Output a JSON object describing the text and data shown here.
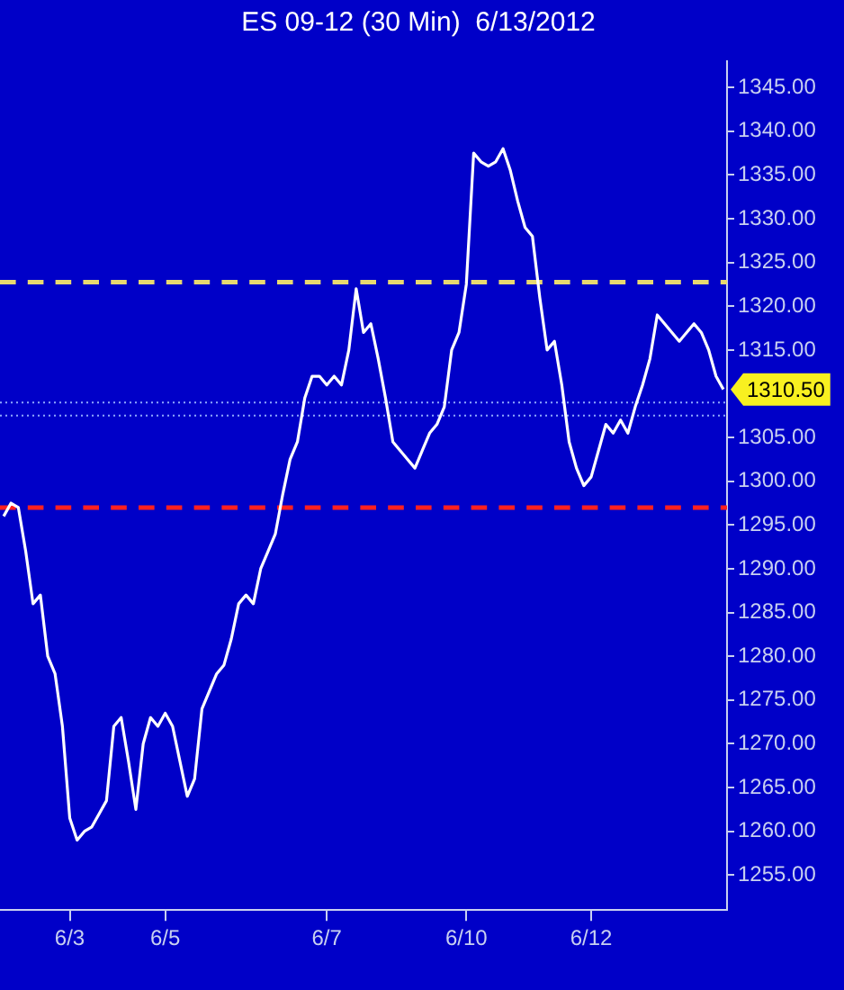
{
  "chart_data": {
    "type": "line",
    "title": "ES 09-12 (30 Min)  6/13/2012",
    "categories": [
      null,
      null,
      null,
      null,
      null,
      null,
      null,
      null,
      null,
      "6/3",
      null,
      null,
      null,
      null,
      null,
      null,
      null,
      null,
      null,
      null,
      null,
      null,
      "6/5",
      null,
      null,
      null,
      null,
      null,
      null,
      null,
      null,
      null,
      null,
      null,
      null,
      null,
      null,
      null,
      null,
      null,
      null,
      null,
      null,
      null,
      "6/7",
      null,
      null,
      null,
      null,
      null,
      null,
      null,
      null,
      null,
      null,
      null,
      null,
      null,
      null,
      null,
      null,
      null,
      null,
      "6/10",
      null,
      null,
      null,
      null,
      null,
      null,
      null,
      null,
      null,
      null,
      null,
      null,
      null,
      null,
      null,
      null,
      "6/12",
      null,
      null,
      null,
      null,
      null,
      null,
      null,
      null,
      null,
      null,
      null,
      null,
      null,
      null,
      null,
      null,
      null,
      null
    ],
    "series": [
      {
        "color": "#ffffff",
        "values": [
          1296,
          1297.5,
          1297,
          1292,
          1286,
          1287,
          1280,
          1278,
          1272,
          1261.5,
          1259,
          1260,
          1260.5,
          1262,
          1263.5,
          1272,
          1273,
          1268,
          1262.5,
          1270,
          1273,
          1272,
          1273.5,
          1272,
          1268,
          1264,
          1266,
          1274,
          1276,
          1278,
          1279,
          1282,
          1286,
          1287,
          1286,
          1290,
          1292,
          1294,
          1298.5,
          1302.5,
          1304.5,
          1309.5,
          1312,
          1312,
          1311,
          1312,
          1311,
          1315,
          1322,
          1317,
          1318,
          1314,
          1309.5,
          1304.5,
          1303.5,
          1302.5,
          1301.5,
          1303.5,
          1305.5,
          1306.5,
          1308.5,
          1315,
          1317,
          1322.5,
          1337.5,
          1336.5,
          1336,
          1336.5,
          1338,
          1335.5,
          1332,
          1329,
          1328,
          1321,
          1315,
          1316,
          1311,
          1304.5,
          1301.5,
          1299.5,
          1300.5,
          1303.5,
          1306.5,
          1305.5,
          1307,
          1305.5,
          1308.5,
          1311,
          1314,
          1319,
          1318,
          1317,
          1316,
          1317,
          1318,
          1317,
          1315,
          1312,
          1310.5
        ]
      }
    ],
    "ylim": [
      1251,
      1348
    ],
    "yticks": [
      {
        "value": 1255,
        "label": "1255.00"
      },
      {
        "value": 1260,
        "label": "1260.00"
      },
      {
        "value": 1265,
        "label": "1265.00"
      },
      {
        "value": 1270,
        "label": "1270.00"
      },
      {
        "value": 1275,
        "label": "1275.00"
      },
      {
        "value": 1280,
        "label": "1280.00"
      },
      {
        "value": 1285,
        "label": "1285.00"
      },
      {
        "value": 1290,
        "label": "1290.00"
      },
      {
        "value": 1295,
        "label": "1295.00"
      },
      {
        "value": 1300,
        "label": "1300.00"
      },
      {
        "value": 1305,
        "label": "1305.00"
      },
      {
        "value": 1315,
        "label": "1315.00"
      },
      {
        "value": 1320,
        "label": "1320.00"
      },
      {
        "value": 1325,
        "label": "1325.00"
      },
      {
        "value": 1330,
        "label": "1330.00"
      },
      {
        "value": 1335,
        "label": "1335.00"
      },
      {
        "value": 1340,
        "label": "1340.00"
      },
      {
        "value": 1345,
        "label": "1345.00"
      }
    ],
    "ref_lines": [
      {
        "axis": "y",
        "value": 1322.75,
        "color": "#e8d870",
        "line_style": "dashed"
      },
      {
        "axis": "y",
        "value": 1297,
        "color": "#ff2020",
        "line_style": "dashed"
      },
      {
        "axis": "y",
        "value": 1309,
        "color": "#8fa8ff",
        "line_style": "dotted"
      },
      {
        "axis": "y",
        "value": 1307.5,
        "color": "#8fa8ff",
        "line_style": "dotted"
      }
    ],
    "annotations": [
      "1310.50"
    ],
    "grid": false,
    "legend": false,
    "marker": "none",
    "line_style": "solid"
  }
}
